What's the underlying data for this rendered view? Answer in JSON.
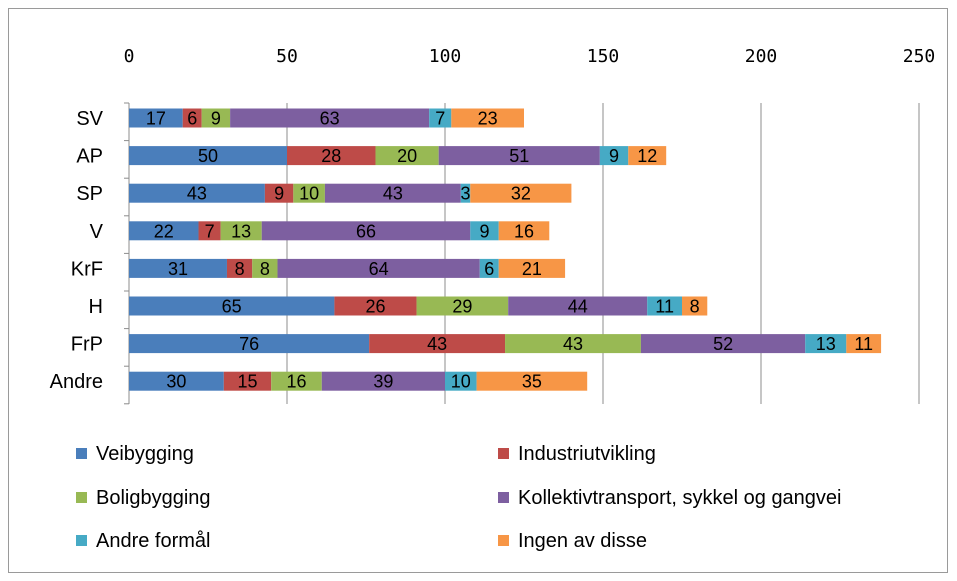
{
  "chart_data": {
    "type": "bar",
    "orientation": "horizontal",
    "stacked": true,
    "title": "",
    "xlabel": "",
    "ylabel": "",
    "xlim": [
      0,
      250
    ],
    "ticks": [
      "0",
      "50",
      "100",
      "150",
      "200",
      "250"
    ],
    "tick_values": [
      0,
      50,
      100,
      150,
      200,
      250
    ],
    "axis_position": "top",
    "grid": true,
    "legend_position": "bottom",
    "categories": [
      "SV",
      "AP",
      "SP",
      "V",
      "KrF",
      "H",
      "FrP",
      "Andre"
    ],
    "series": [
      {
        "name": "Veibygging",
        "color": "#4a7ebb",
        "values": [
          17,
          50,
          43,
          22,
          31,
          65,
          76,
          30
        ]
      },
      {
        "name": "Industriutvikling",
        "color": "#be4b48",
        "values": [
          6,
          28,
          9,
          7,
          8,
          26,
          43,
          15
        ]
      },
      {
        "name": "Boligbygging",
        "color": "#98b954",
        "values": [
          9,
          20,
          10,
          13,
          8,
          29,
          43,
          16
        ]
      },
      {
        "name": "Kollektivtransport, sykkel og gangvei",
        "color": "#7d5fa0",
        "values": [
          63,
          51,
          43,
          66,
          64,
          44,
          52,
          39
        ]
      },
      {
        "name": "Andre formål",
        "color": "#46aac5",
        "values": [
          7,
          9,
          3,
          9,
          6,
          11,
          13,
          10
        ]
      },
      {
        "name": "Ingen av disse",
        "color": "#f79646",
        "values": [
          23,
          12,
          32,
          16,
          21,
          8,
          11,
          35
        ]
      }
    ]
  }
}
